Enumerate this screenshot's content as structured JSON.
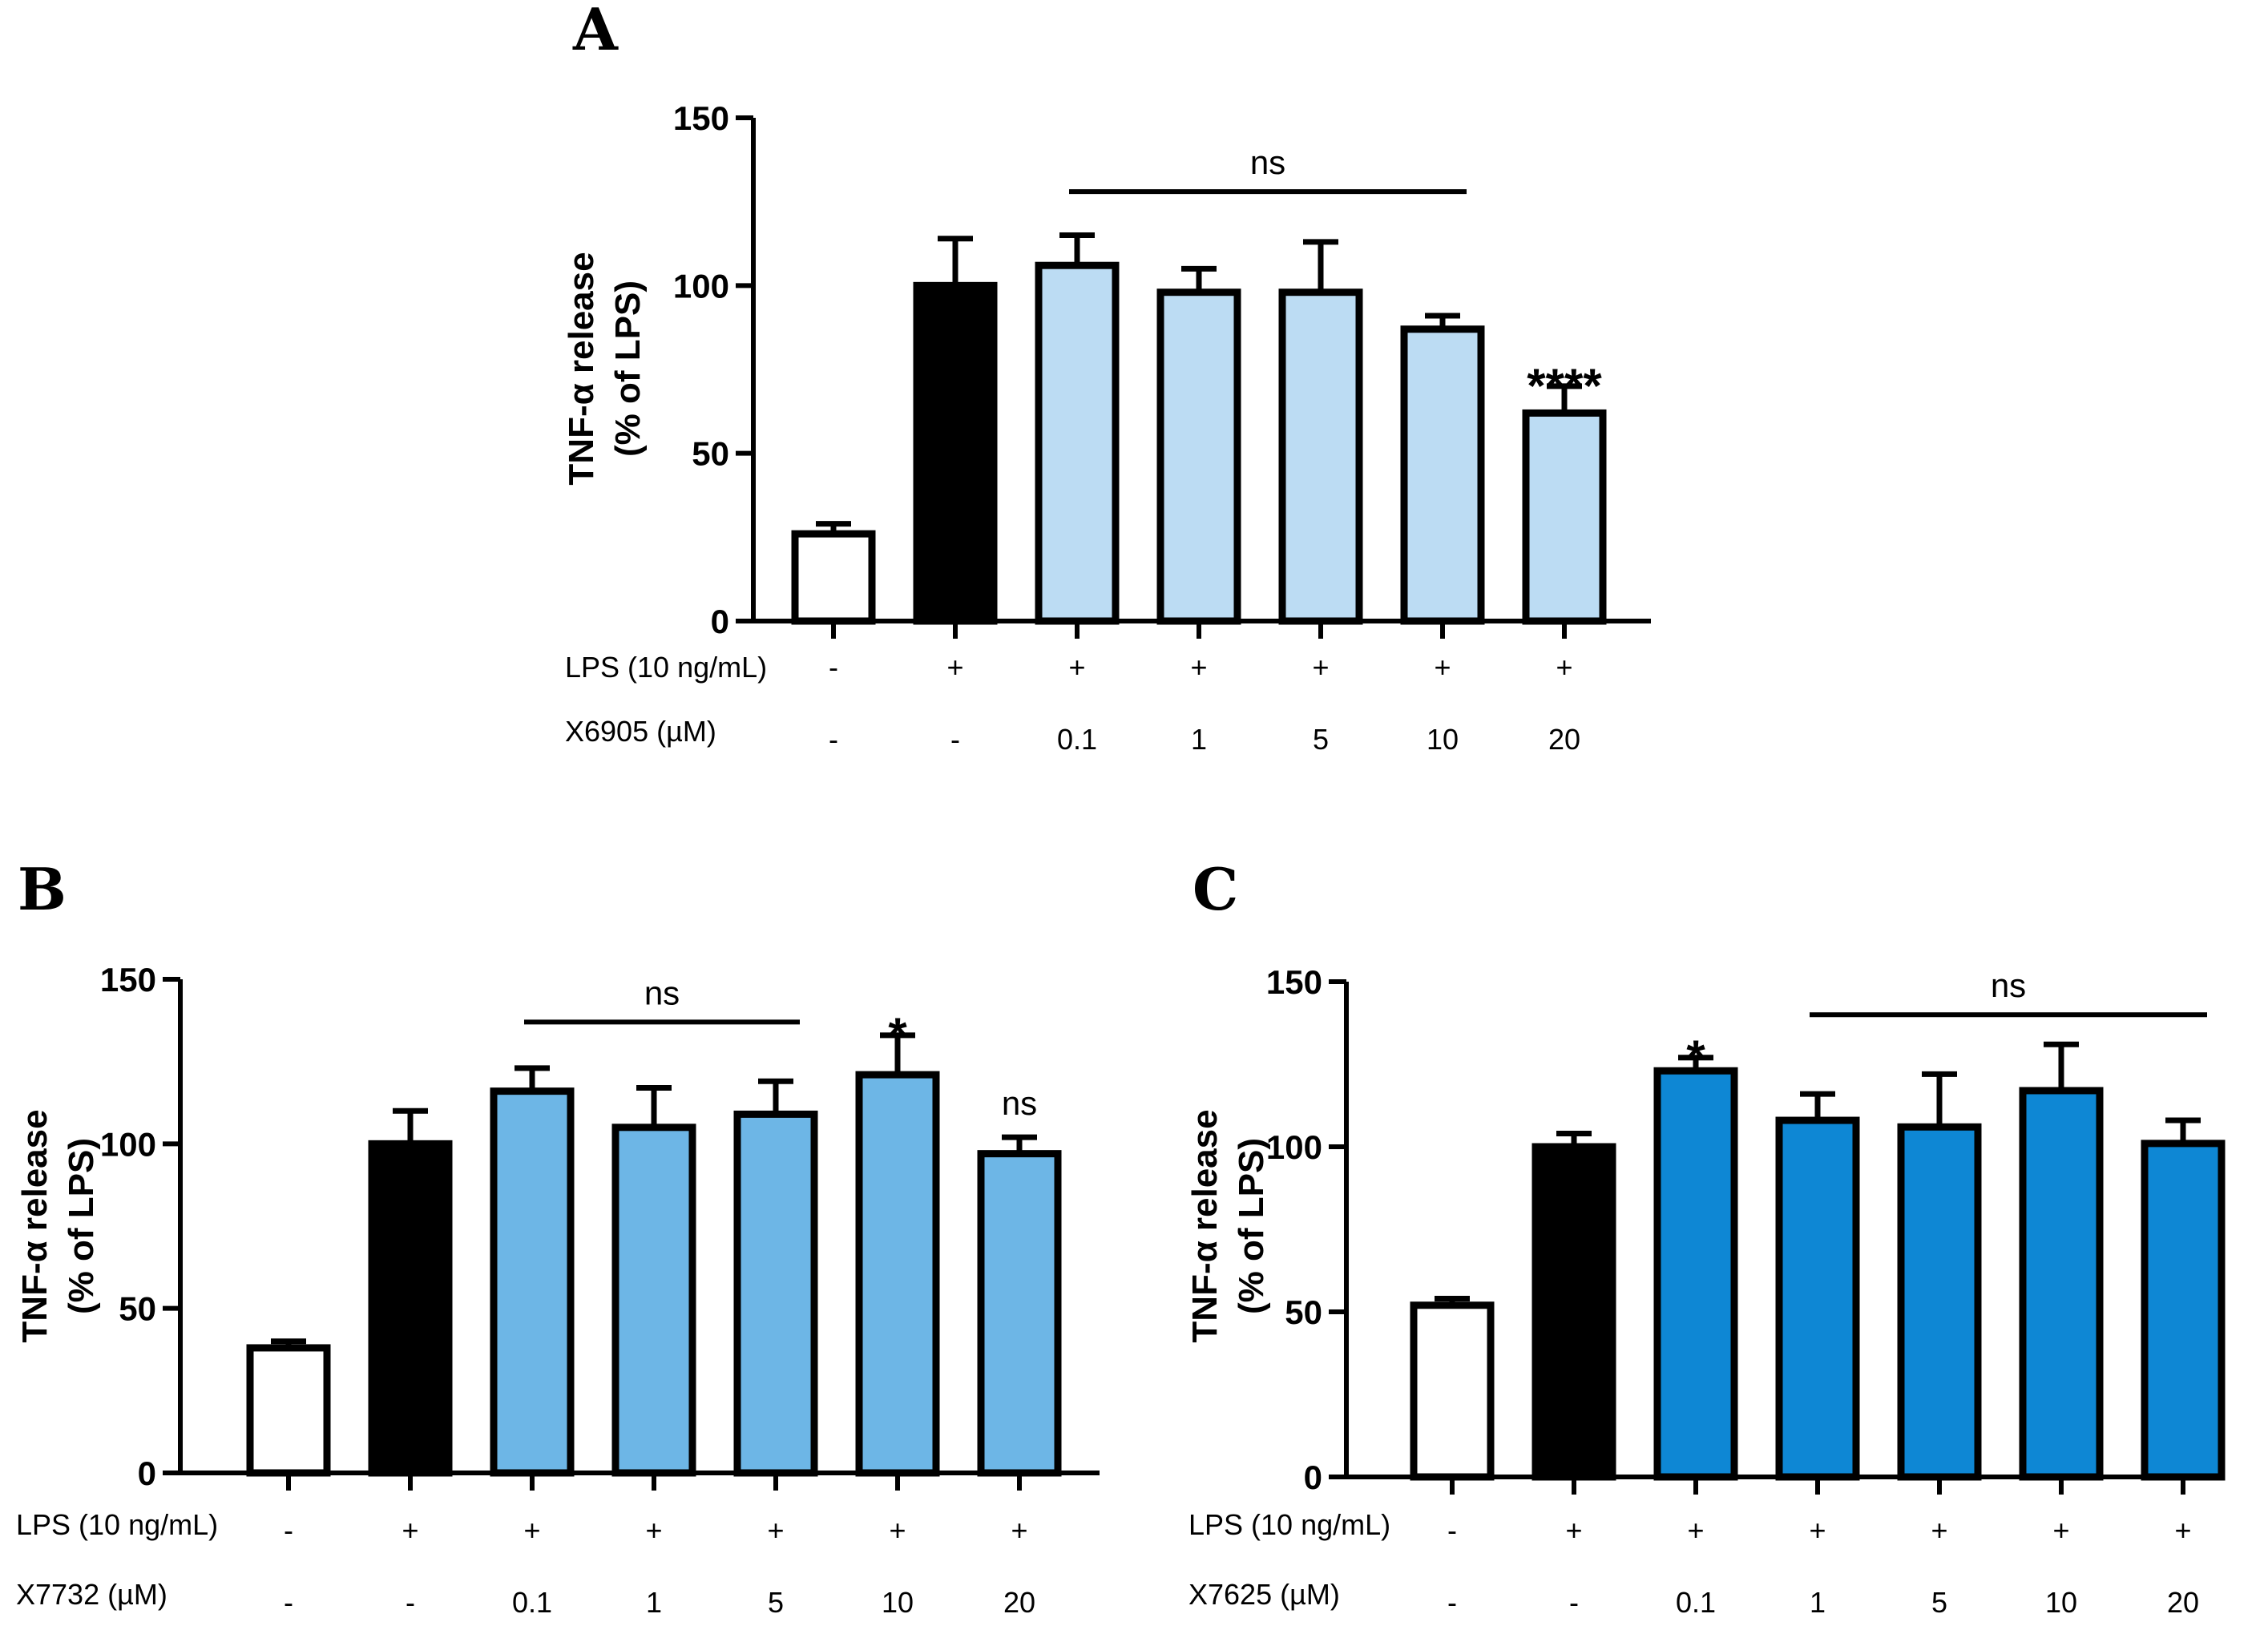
{
  "chart_data": [
    {
      "panel": "A",
      "type": "bar",
      "ylabel": "TNF-α release",
      "ylabel2": "(% of LPS)",
      "ylim": [
        0,
        150
      ],
      "yticks": [
        0,
        50,
        100,
        150
      ],
      "categories": [
        "1",
        "2",
        "3",
        "4",
        "5",
        "6",
        "7"
      ],
      "values": [
        26,
        100,
        106,
        98,
        98,
        87,
        62
      ],
      "errors": [
        3,
        14,
        9,
        7,
        15,
        4,
        8
      ],
      "colors": [
        "#ffffff",
        "#000000",
        "#bcdcf3",
        "#bcdcf3",
        "#bcdcf3",
        "#bcdcf3",
        "#bcdcf3"
      ],
      "row1_label": "LPS (10 ng/mL)",
      "row1_values": [
        "-",
        "+",
        "+",
        "+",
        "+",
        "+",
        "+"
      ],
      "row2_label": "X6905 (µM)",
      "row2_values": [
        "-",
        "-",
        "0.1",
        "1",
        "5",
        "10",
        "20"
      ],
      "ns_bracket": {
        "label": "ns",
        "from": 2,
        "to": 5,
        "y": 128
      },
      "bar_sig": [
        {
          "bar": 6,
          "label": "****"
        }
      ]
    },
    {
      "panel": "B",
      "type": "bar",
      "ylabel": "TNF-α release",
      "ylabel2": "(% of LPS)",
      "ylim": [
        0,
        150
      ],
      "yticks": [
        0,
        50,
        100,
        150
      ],
      "categories": [
        "1",
        "2",
        "3",
        "4",
        "5",
        "6",
        "7"
      ],
      "values": [
        38,
        100,
        116,
        105,
        109,
        121,
        97
      ],
      "errors": [
        2,
        10,
        7,
        12,
        10,
        12,
        5
      ],
      "colors": [
        "#ffffff",
        "#000000",
        "#6db6e6",
        "#6db6e6",
        "#6db6e6",
        "#6db6e6",
        "#6db6e6"
      ],
      "row1_label": "LPS (10 ng/mL)",
      "row1_values": [
        "-",
        "+",
        "+",
        "+",
        "+",
        "+",
        "+"
      ],
      "row2_label": "X7732 (µM)",
      "row2_values": [
        "-",
        "-",
        "0.1",
        "1",
        "5",
        "10",
        "20"
      ],
      "ns_bracket": {
        "label": "ns",
        "from": 2,
        "to": 4,
        "y": 137
      },
      "bar_sig": [
        {
          "bar": 5,
          "label": "*"
        },
        {
          "bar": 6,
          "label": "ns"
        }
      ]
    },
    {
      "panel": "C",
      "type": "bar",
      "ylabel": "TNF-α release",
      "ylabel2": "(% of LPS)",
      "ylim": [
        0,
        150
      ],
      "yticks": [
        0,
        50,
        100,
        150
      ],
      "categories": [
        "1",
        "2",
        "3",
        "4",
        "5",
        "6",
        "7"
      ],
      "values": [
        52,
        100,
        123,
        108,
        106,
        117,
        101
      ],
      "errors": [
        2,
        4,
        4,
        8,
        16,
        14,
        7
      ],
      "colors": [
        "#ffffff",
        "#000000",
        "#0e87d4",
        "#0e87d4",
        "#0e87d4",
        "#0e87d4",
        "#0e87d4"
      ],
      "row1_label": "LPS (10 ng/mL)",
      "row1_values": [
        "-",
        "+",
        "+",
        "+",
        "+",
        "+",
        "+"
      ],
      "row2_label": "X7625 (µM)",
      "row2_values": [
        "-",
        "-",
        "0.1",
        "1",
        "5",
        "10",
        "20"
      ],
      "ns_bracket": {
        "label": "ns",
        "from": 3,
        "to": 6,
        "y": 140
      },
      "bar_sig": [
        {
          "bar": 2,
          "label": "*"
        }
      ]
    }
  ]
}
